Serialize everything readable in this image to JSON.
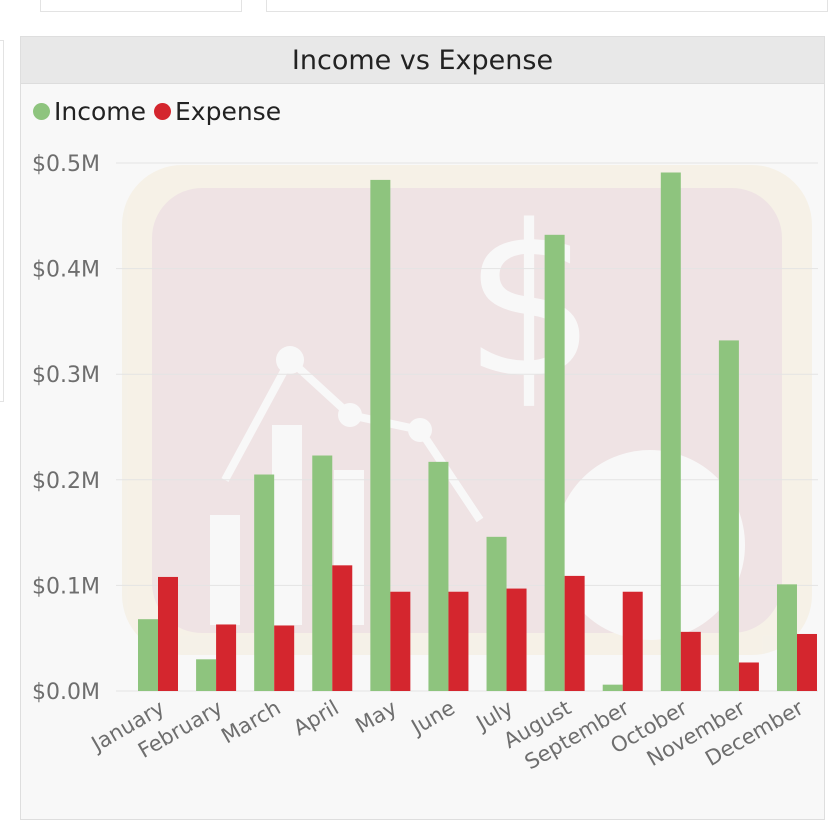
{
  "card": {
    "title": "Income vs Expense"
  },
  "colors": {
    "income": "#8ec47e",
    "expense": "#d4262e",
    "grid": "#e4e4e4",
    "tick": "#6e6e6e"
  },
  "chart_data": {
    "type": "bar",
    "title": "Income vs Expense",
    "legend_position": "top-left",
    "grid": true,
    "categories": [
      "January",
      "February",
      "March",
      "April",
      "May",
      "June",
      "July",
      "August",
      "September",
      "October",
      "November",
      "December"
    ],
    "series": [
      {
        "name": "Income",
        "values": [
          0.068,
          0.03,
          0.205,
          0.223,
          0.484,
          0.217,
          0.146,
          0.432,
          0.006,
          0.491,
          0.332,
          0.101
        ]
      },
      {
        "name": "Expense",
        "values": [
          0.108,
          0.063,
          0.062,
          0.119,
          0.094,
          0.094,
          0.097,
          0.109,
          0.094,
          0.056,
          0.027,
          0.054
        ]
      }
    ],
    "yticks": [
      "$0.0M",
      "$0.1M",
      "$0.2M",
      "$0.3M",
      "$0.4M",
      "$0.5M"
    ],
    "ylim": [
      0,
      0.5
    ],
    "xlabel": "",
    "ylabel": ""
  }
}
